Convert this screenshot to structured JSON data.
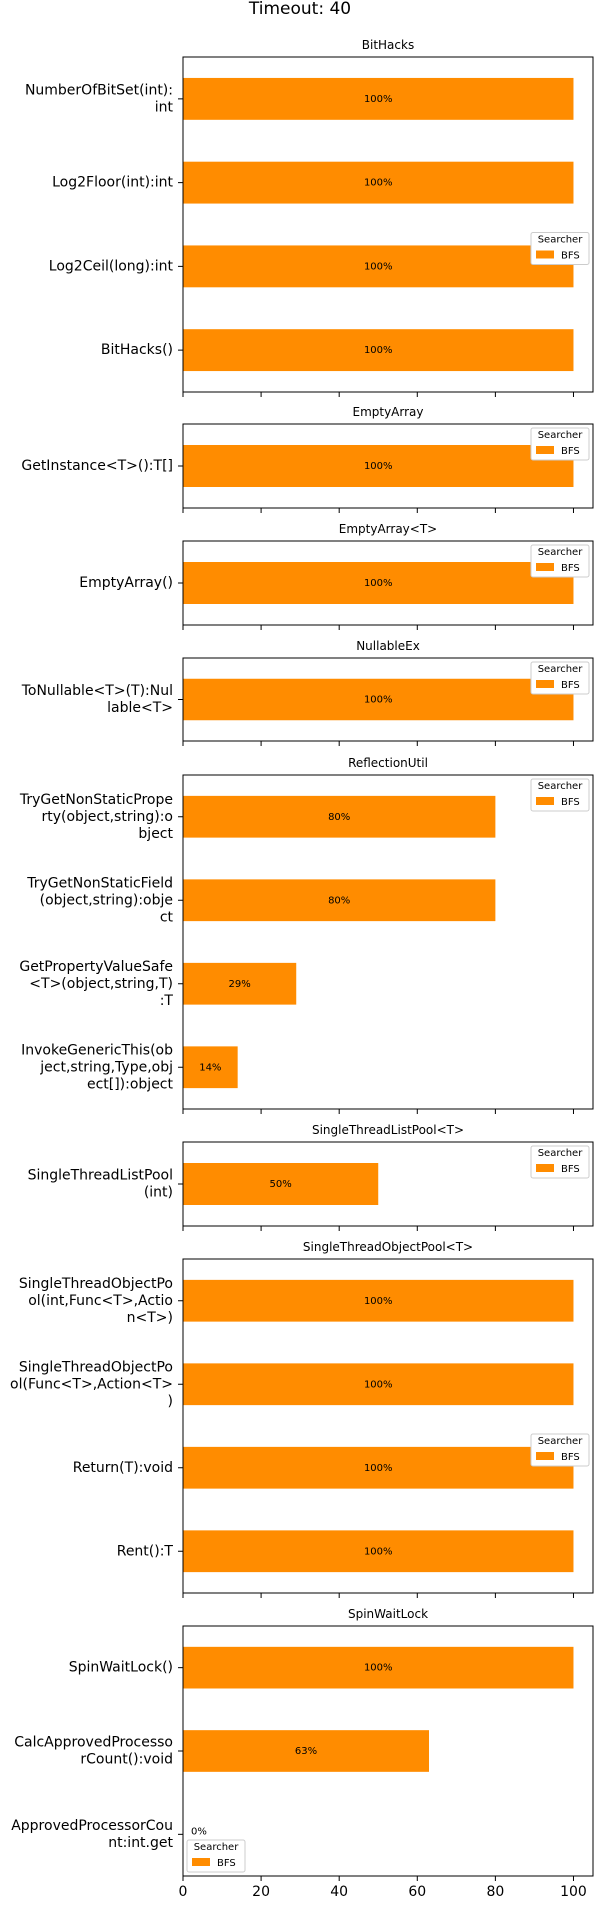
{
  "title": "Timeout: 40",
  "colors": {
    "bar": "#FF8C00"
  },
  "x_ticks": [
    "0",
    "20",
    "40",
    "60",
    "80",
    "100"
  ],
  "chart_data": [
    {
      "type": "bar",
      "orientation": "horizontal",
      "title": "BitHacks",
      "categories": [
        "NumberOfBitSet(int):int",
        "Log2Floor(int):int",
        "Log2Ceil(long):int",
        "BitHacks()"
      ],
      "series": [
        {
          "name": "BFS",
          "values": [
            100,
            100,
            100,
            100
          ]
        }
      ],
      "labels": [
        "100%",
        "100%",
        "100%",
        "100%"
      ],
      "xlim": [
        0,
        105
      ],
      "legend": {
        "title": "Searcher",
        "placement": "center-right"
      }
    },
    {
      "type": "bar",
      "orientation": "horizontal",
      "title": "EmptyArray",
      "categories": [
        "GetInstance<T>():T[]"
      ],
      "series": [
        {
          "name": "BFS",
          "values": [
            100
          ]
        }
      ],
      "labels": [
        "100%"
      ],
      "xlim": [
        0,
        105
      ],
      "legend": {
        "title": "Searcher",
        "placement": "upper-right"
      }
    },
    {
      "type": "bar",
      "orientation": "horizontal",
      "title": "EmptyArray<T>",
      "categories": [
        "EmptyArray()"
      ],
      "series": [
        {
          "name": "BFS",
          "values": [
            100
          ]
        }
      ],
      "labels": [
        "100%"
      ],
      "xlim": [
        0,
        105
      ],
      "legend": {
        "title": "Searcher",
        "placement": "upper-right"
      }
    },
    {
      "type": "bar",
      "orientation": "horizontal",
      "title": "NullableEx",
      "categories": [
        "ToNullable<T>(T):Nullable<T>"
      ],
      "series": [
        {
          "name": "BFS",
          "values": [
            100
          ]
        }
      ],
      "labels": [
        "100%"
      ],
      "xlim": [
        0,
        105
      ],
      "legend": {
        "title": "Searcher",
        "placement": "upper-right"
      }
    },
    {
      "type": "bar",
      "orientation": "horizontal",
      "title": "ReflectionUtil",
      "categories": [
        "TryGetNonStaticProperty(object,string):object",
        "TryGetNonStaticField(object,string):object",
        "GetPropertyValueSafe<T>(object,string,T):T",
        "InvokeGenericThis(object,string,Type,object[]):object"
      ],
      "series": [
        {
          "name": "BFS",
          "values": [
            80,
            80,
            29,
            14
          ]
        }
      ],
      "labels": [
        "80%",
        "80%",
        "29%",
        "14%"
      ],
      "xlim": [
        0,
        105
      ],
      "legend": {
        "title": "Searcher",
        "placement": "upper-right"
      }
    },
    {
      "type": "bar",
      "orientation": "horizontal",
      "title": "SingleThreadListPool<T>",
      "categories": [
        "SingleThreadListPool(int)"
      ],
      "series": [
        {
          "name": "BFS",
          "values": [
            50
          ]
        }
      ],
      "labels": [
        "50%"
      ],
      "xlim": [
        0,
        105
      ],
      "legend": {
        "title": "Searcher",
        "placement": "upper-right"
      }
    },
    {
      "type": "bar",
      "orientation": "horizontal",
      "title": "SingleThreadObjectPool<T>",
      "categories": [
        "SingleThreadObjectPool(int,Func<T>,Action<T>)",
        "SingleThreadObjectPool(Func<T>,Action<T>)",
        "Return(T):void",
        "Rent():T"
      ],
      "series": [
        {
          "name": "BFS",
          "values": [
            100,
            100,
            100,
            100
          ]
        }
      ],
      "labels": [
        "100%",
        "100%",
        "100%",
        "100%"
      ],
      "xlim": [
        0,
        105
      ],
      "legend": {
        "title": "Searcher",
        "placement": "center-right"
      }
    },
    {
      "type": "bar",
      "orientation": "horizontal",
      "title": "SpinWaitLock",
      "categories": [
        "SpinWaitLock()",
        "CalcApprovedProcessorCount():void",
        "ApprovedProcessorCount:int.get"
      ],
      "series": [
        {
          "name": "BFS",
          "values": [
            100,
            63,
            0
          ]
        }
      ],
      "labels": [
        "100%",
        "63%",
        "0%"
      ],
      "xlim": [
        0,
        105
      ],
      "legend": {
        "title": "Searcher",
        "placement": "lower-left"
      }
    }
  ]
}
